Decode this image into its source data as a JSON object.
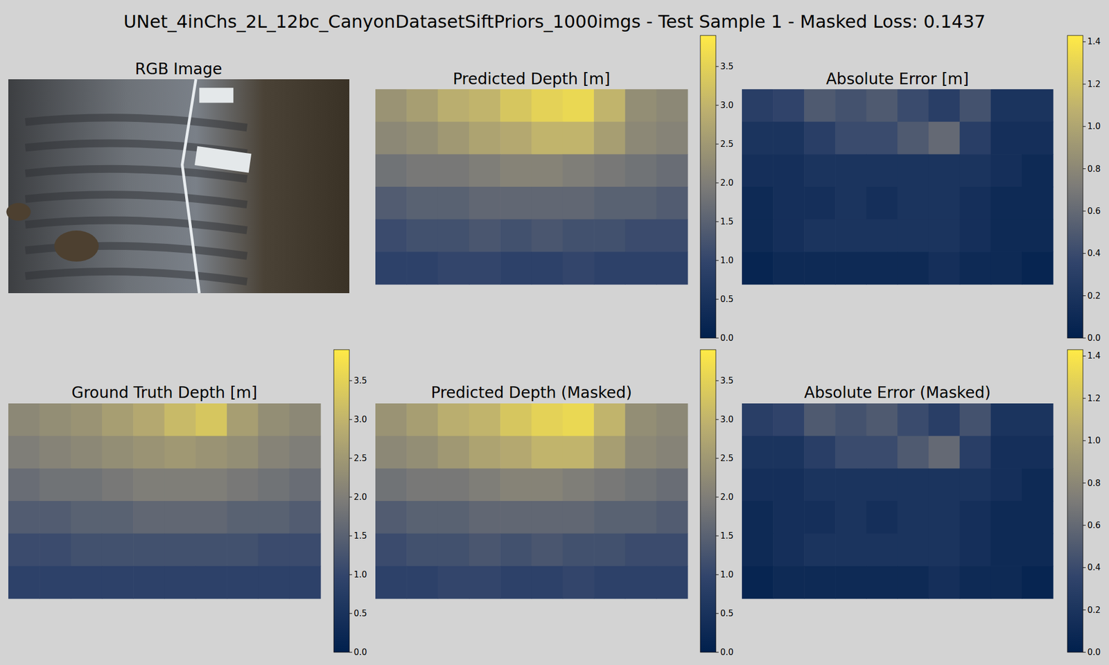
{
  "title": "UNet_4inChs_2L_12bc_CanyonDatasetSiftPriors_1000imgs - Test Sample 1 - Masked Loss: 0.1437",
  "chart_data": [
    {
      "type": "image",
      "title": "RGB Image"
    },
    {
      "type": "heatmap",
      "title": "Predicted Depth [m]",
      "color": "cividis",
      "cells": [
        [
          2.4,
          2.6,
          2.9,
          3.0,
          3.3,
          3.5,
          3.6,
          3.0,
          2.3,
          2.2
        ],
        [
          2.2,
          2.3,
          2.5,
          2.7,
          2.8,
          3.0,
          3.0,
          2.6,
          2.2,
          2.1
        ],
        [
          1.8,
          1.9,
          1.9,
          2.0,
          2.1,
          2.1,
          2.0,
          1.9,
          1.8,
          1.7
        ],
        [
          1.4,
          1.5,
          1.5,
          1.6,
          1.6,
          1.6,
          1.6,
          1.5,
          1.5,
          1.4
        ],
        [
          1.1,
          1.2,
          1.2,
          1.3,
          1.2,
          1.3,
          1.2,
          1.2,
          1.1,
          1.1
        ],
        [
          0.9,
          0.9,
          1.0,
          1.0,
          0.9,
          0.9,
          1.0,
          0.9,
          0.9,
          0.9
        ]
      ],
      "color_range": [
        0,
        3.9
      ],
      "color_ticks": [
        {
          "value": 0,
          "label": "0.0"
        },
        0.5,
        {
          "value": 1,
          "label": "1.0"
        },
        1.5,
        {
          "value": 2,
          "label": "2.0"
        },
        2.5,
        {
          "value": 3,
          "label": "3.0"
        },
        3.5
      ]
    },
    {
      "type": "heatmap",
      "title": "Absolute Error [m]",
      "color": "cividis",
      "cells": [
        [
          0.3,
          0.35,
          0.5,
          0.45,
          0.5,
          0.4,
          0.3,
          0.45,
          0.2,
          0.2
        ],
        [
          0.2,
          0.2,
          0.3,
          0.4,
          0.4,
          0.5,
          0.6,
          0.3,
          0.15,
          0.15
        ],
        [
          0.15,
          0.15,
          0.2,
          0.2,
          0.2,
          0.2,
          0.2,
          0.2,
          0.15,
          0.1
        ],
        [
          0.1,
          0.15,
          0.15,
          0.2,
          0.15,
          0.2,
          0.2,
          0.15,
          0.1,
          0.1
        ],
        [
          0.1,
          0.15,
          0.2,
          0.2,
          0.2,
          0.2,
          0.2,
          0.15,
          0.1,
          0.1
        ],
        [
          0.05,
          0.1,
          0.1,
          0.1,
          0.1,
          0.1,
          0.15,
          0.1,
          0.1,
          0.05
        ]
      ],
      "color_range": [
        0,
        1.43
      ],
      "color_ticks": [
        {
          "value": 0,
          "label": "0.0"
        },
        0.2,
        0.4,
        0.6,
        0.8,
        {
          "value": 1,
          "label": "1.0"
        },
        1.2,
        1.4
      ]
    },
    {
      "type": "heatmap",
      "title": "Ground Truth Depth [m]",
      "color": "cividis",
      "cells": [
        [
          2.2,
          2.3,
          2.4,
          2.6,
          2.8,
          3.1,
          3.3,
          2.6,
          2.3,
          2.2
        ],
        [
          2.0,
          2.1,
          2.2,
          2.3,
          2.4,
          2.5,
          2.4,
          2.3,
          2.1,
          2.0
        ],
        [
          1.7,
          1.8,
          1.8,
          1.9,
          2.0,
          2.0,
          2.0,
          1.9,
          1.8,
          1.7
        ],
        [
          1.4,
          1.4,
          1.5,
          1.5,
          1.6,
          1.6,
          1.6,
          1.5,
          1.5,
          1.4
        ],
        [
          1.1,
          1.1,
          1.2,
          1.2,
          1.2,
          1.2,
          1.2,
          1.2,
          1.1,
          1.1
        ],
        [
          0.9,
          0.9,
          0.9,
          0.9,
          0.9,
          0.9,
          0.9,
          0.9,
          0.9,
          0.9
        ]
      ],
      "color_range": [
        0,
        3.9
      ],
      "color_ticks": [
        {
          "value": 0,
          "label": "0.0"
        },
        0.5,
        {
          "value": 1,
          "label": "1.0"
        },
        1.5,
        {
          "value": 2,
          "label": "2.0"
        },
        2.5,
        {
          "value": 3,
          "label": "3.0"
        },
        3.5
      ]
    },
    {
      "type": "heatmap",
      "title": "Predicted Depth (Masked)",
      "color": "cividis",
      "cells": [
        [
          2.4,
          2.6,
          2.9,
          3.0,
          3.3,
          3.5,
          3.6,
          3.0,
          2.3,
          2.2
        ],
        [
          2.2,
          2.3,
          2.5,
          2.7,
          2.8,
          3.0,
          3.0,
          2.6,
          2.2,
          2.1
        ],
        [
          1.8,
          1.9,
          1.9,
          2.0,
          2.1,
          2.1,
          2.0,
          1.9,
          1.8,
          1.7
        ],
        [
          1.4,
          1.5,
          1.5,
          1.6,
          1.6,
          1.6,
          1.6,
          1.5,
          1.5,
          1.4
        ],
        [
          1.1,
          1.2,
          1.2,
          1.3,
          1.2,
          1.3,
          1.2,
          1.2,
          1.1,
          1.1
        ],
        [
          0.9,
          0.9,
          1.0,
          1.0,
          0.9,
          0.9,
          1.0,
          0.9,
          0.9,
          0.9
        ]
      ],
      "color_range": [
        0,
        3.9
      ],
      "color_ticks": [
        {
          "value": 0,
          "label": "0.0"
        },
        0.5,
        {
          "value": 1,
          "label": "1.0"
        },
        1.5,
        {
          "value": 2,
          "label": "2.0"
        },
        2.5,
        {
          "value": 3,
          "label": "3.0"
        },
        3.5
      ]
    },
    {
      "type": "heatmap",
      "title": "Absolute Error (Masked)",
      "color": "cividis",
      "cells": [
        [
          0.3,
          0.35,
          0.5,
          0.45,
          0.5,
          0.4,
          0.3,
          0.45,
          0.2,
          0.2
        ],
        [
          0.2,
          0.2,
          0.3,
          0.4,
          0.4,
          0.5,
          0.6,
          0.3,
          0.15,
          0.15
        ],
        [
          0.15,
          0.15,
          0.2,
          0.2,
          0.2,
          0.2,
          0.2,
          0.2,
          0.15,
          0.1
        ],
        [
          0.1,
          0.15,
          0.15,
          0.2,
          0.15,
          0.2,
          0.2,
          0.15,
          0.1,
          0.1
        ],
        [
          0.1,
          0.15,
          0.2,
          0.2,
          0.2,
          0.2,
          0.2,
          0.15,
          0.1,
          0.1
        ],
        [
          0.05,
          0.1,
          0.1,
          0.1,
          0.1,
          0.1,
          0.15,
          0.1,
          0.1,
          0.05
        ]
      ],
      "color_range": [
        0,
        1.43
      ],
      "color_ticks": [
        {
          "value": 0,
          "label": "0.0"
        },
        0.2,
        0.4,
        0.6,
        0.8,
        {
          "value": 1,
          "label": "1.0"
        },
        1.2,
        1.4
      ]
    }
  ]
}
